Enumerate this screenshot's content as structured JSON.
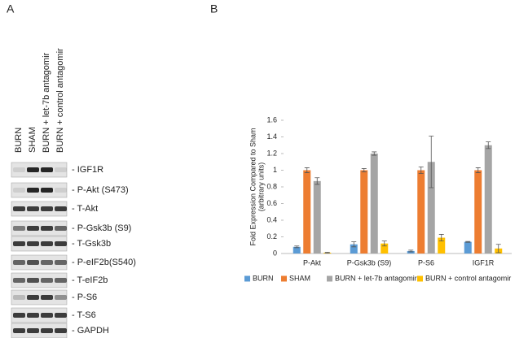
{
  "panel_a": {
    "label": "A",
    "lanes": [
      "BURN",
      "SHAM",
      "BURN + let-7b antagomir",
      "BURN + control antagomir"
    ],
    "bands": [
      "- IGF1R",
      "- P-Akt (S473)",
      "- T-Akt",
      "- P-Gsk3b (S9)",
      "- T-Gsk3b",
      "- P-eIF2b(S540)",
      "- T-eIF2b",
      "- P-S6",
      "- T-S6",
      "- GAPDH"
    ]
  },
  "panel_b_label": "B",
  "chart_data": {
    "type": "bar",
    "ylabel": [
      "Fold Expression Compared to Sham",
      "(arbitrary units)"
    ],
    "categories": [
      "P-Akt",
      "P-Gsk3b (S9)",
      "P-S6",
      "IGF1R"
    ],
    "series": [
      {
        "name": "BURN",
        "color": "#5b9bd5",
        "values": [
          0.08,
          0.11,
          0.03,
          0.14
        ],
        "errors": [
          0.01,
          0.03,
          0.01,
          0.005
        ]
      },
      {
        "name": "SHAM",
        "color": "#ed7d31",
        "values": [
          1.0,
          1.0,
          1.0,
          1.0
        ],
        "errors": [
          0.03,
          0.02,
          0.04,
          0.03
        ]
      },
      {
        "name": "BURN + let-7b antagomir",
        "color": "#a5a5a5",
        "values": [
          0.87,
          1.2,
          1.1,
          1.3
        ],
        "errors": [
          0.04,
          0.02,
          0.31,
          0.04
        ]
      },
      {
        "name": "BURN + control antagomir",
        "color": "#ffc000",
        "values": [
          0.01,
          0.12,
          0.19,
          0.06
        ],
        "errors": [
          0.005,
          0.03,
          0.04,
          0.05
        ]
      }
    ],
    "ylim": [
      0,
      1.6
    ],
    "yticks": [
      0,
      0.2,
      0.4,
      0.6,
      0.8,
      1,
      1.2,
      1.4,
      1.6
    ],
    "legend": "bottom"
  }
}
